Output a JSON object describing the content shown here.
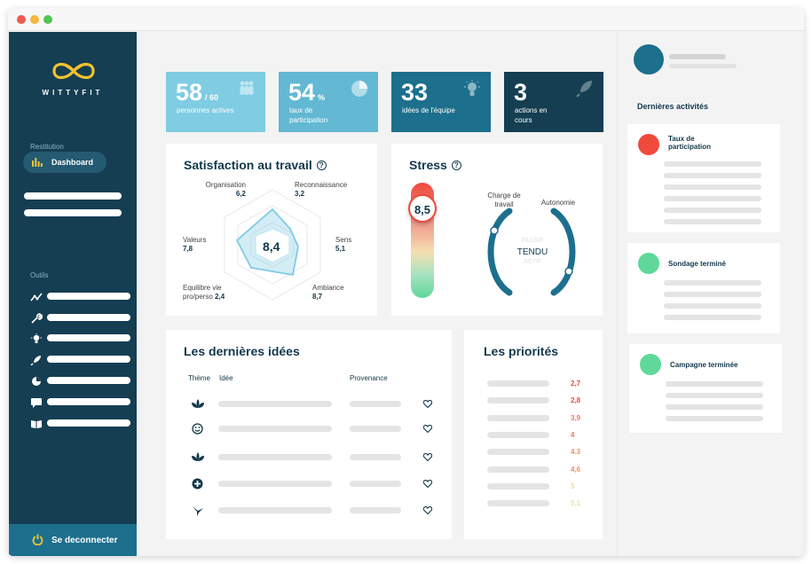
{
  "brand": {
    "name": "WITTYFIT"
  },
  "sidebar": {
    "section_restitution": "Restitution",
    "dashboard_label": "Dashboard",
    "section_tools": "Outils",
    "logout_label": "Se deconnecter"
  },
  "kpis": [
    {
      "value": "58",
      "suffix": "/ 60",
      "label": "personnes actives",
      "color": "#7fcce3",
      "icon": "people-icon"
    },
    {
      "value": "54",
      "suffix": "%",
      "label": "taux de participation",
      "color": "#63b8d4",
      "icon": "pie-chart-icon"
    },
    {
      "value": "33",
      "suffix": "",
      "label": "idées de l'équipe",
      "color": "#1c6f8d",
      "icon": "lightbulb-icon"
    },
    {
      "value": "3",
      "suffix": "",
      "label": "actions en cours",
      "color": "#153e52",
      "icon": "rocket-icon"
    }
  ],
  "satisfaction": {
    "title": "Satisfaction au travail",
    "center_value": "8,4",
    "axes": [
      {
        "label": "Organisation",
        "value": "6,2"
      },
      {
        "label": "Reconnaissance",
        "value": "3,2"
      },
      {
        "label": "Sens",
        "value": "5,1"
      },
      {
        "label": "Ambiance",
        "value": "8,7"
      },
      {
        "label": "Equilibre vie pro/perso",
        "value": "2,4"
      },
      {
        "label": "Valeurs",
        "value": "7,8"
      }
    ]
  },
  "stress": {
    "title": "Stress",
    "value": "8,5",
    "label_charge": "Charge de travail",
    "label_autonomie": "Autonomie",
    "state_top": "PASSIF",
    "state_center": "TENDU",
    "state_bottom": "ACTIF"
  },
  "ideas": {
    "title": "Les dernières idées",
    "col_theme": "Thème",
    "col_idea": "Idée",
    "col_source": "Provenance",
    "rows": [
      {
        "theme_icon": "lotus-icon"
      },
      {
        "theme_icon": "smiley-icon"
      },
      {
        "theme_icon": "lotus-icon"
      },
      {
        "theme_icon": "plus-circle-icon"
      },
      {
        "theme_icon": "bird-icon"
      }
    ]
  },
  "priorities": {
    "title": "Les priorités",
    "values": [
      {
        "value": "2,7",
        "color": "#ef4a3c"
      },
      {
        "value": "2,8",
        "color": "#ef4a3c"
      },
      {
        "value": "3,9",
        "color": "#f07a5a"
      },
      {
        "value": "4",
        "color": "#f07a5a"
      },
      {
        "value": "4.3",
        "color": "#f08d6e"
      },
      {
        "value": "4,6",
        "color": "#f08d6e"
      },
      {
        "value": "5",
        "color": "#f2d28c"
      },
      {
        "value": "5,1",
        "color": "#f2dfa6"
      }
    ]
  },
  "activities": {
    "title": "Dernières activités",
    "items": [
      {
        "title": "Taux de participation",
        "color": "#ef4a3c"
      },
      {
        "title": "Sondage terminé",
        "color": "#5fd89a"
      },
      {
        "title": "Campagne terminée",
        "color": "#5fd89a"
      }
    ]
  }
}
